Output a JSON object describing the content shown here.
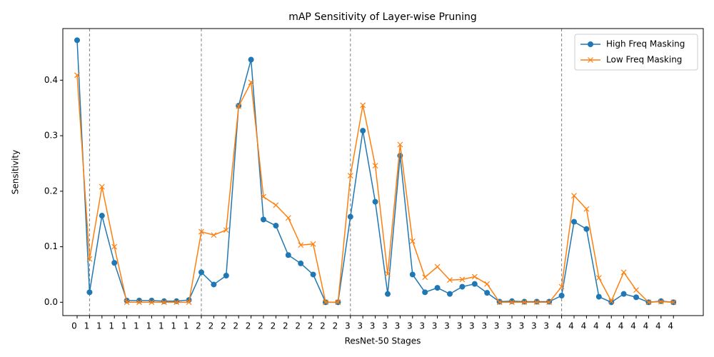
{
  "chart_data": {
    "type": "line",
    "title": "mAP Sensitivity of Layer-wise Pruning",
    "xlabel": "ResNet-50 Stages",
    "ylabel": "Sensitivity",
    "categories": [
      "0",
      "1",
      "1",
      "1",
      "1",
      "1",
      "1",
      "1",
      "1",
      "1",
      "2",
      "2",
      "2",
      "2",
      "2",
      "2",
      "2",
      "2",
      "2",
      "2",
      "2",
      "2",
      "3",
      "3",
      "3",
      "3",
      "3",
      "3",
      "3",
      "3",
      "3",
      "3",
      "3",
      "3",
      "3",
      "3",
      "3",
      "3",
      "3",
      "4",
      "4",
      "4",
      "4",
      "4",
      "4",
      "4",
      "4",
      "4",
      "4"
    ],
    "series": [
      {
        "name": "High Freq Masking",
        "color": "#1f77b4",
        "marker": "circle",
        "values": [
          0.472,
          0.018,
          0.156,
          0.071,
          0.003,
          0.003,
          0.003,
          0.002,
          0.002,
          0.004,
          0.054,
          0.032,
          0.048,
          0.354,
          0.437,
          0.149,
          0.138,
          0.085,
          0.07,
          0.05,
          0.0,
          0.0,
          0.154,
          0.309,
          0.181,
          0.015,
          0.264,
          0.05,
          0.018,
          0.026,
          0.015,
          0.028,
          0.033,
          0.017,
          0.001,
          0.002,
          0.001,
          0.001,
          0.001,
          0.012,
          0.145,
          0.132,
          0.01,
          0.0,
          0.015,
          0.009,
          0.0,
          0.002,
          0.0
        ]
      },
      {
        "name": "Low Freq Masking",
        "color": "#ff7f0e",
        "marker": "x",
        "values": [
          0.409,
          0.078,
          0.208,
          0.1,
          0.0,
          0.0,
          0.0,
          0.0,
          0.0,
          0.0,
          0.127,
          0.121,
          0.13,
          0.353,
          0.396,
          0.19,
          0.175,
          0.152,
          0.103,
          0.105,
          0.0,
          0.0,
          0.228,
          0.355,
          0.246,
          0.051,
          0.284,
          0.11,
          0.045,
          0.064,
          0.04,
          0.041,
          0.046,
          0.033,
          0.0,
          0.0,
          0.0,
          0.0,
          0.0,
          0.028,
          0.192,
          0.168,
          0.044,
          0.002,
          0.054,
          0.022,
          0.0,
          0.001,
          0.0
        ]
      }
    ],
    "ylim": [
      -0.024,
      0.493
    ],
    "yticks": [
      {
        "value": 0,
        "label": "0.0"
      },
      0.1,
      0.2,
      0.3,
      0.4
    ],
    "grid": false,
    "legend": "upper right"
  }
}
